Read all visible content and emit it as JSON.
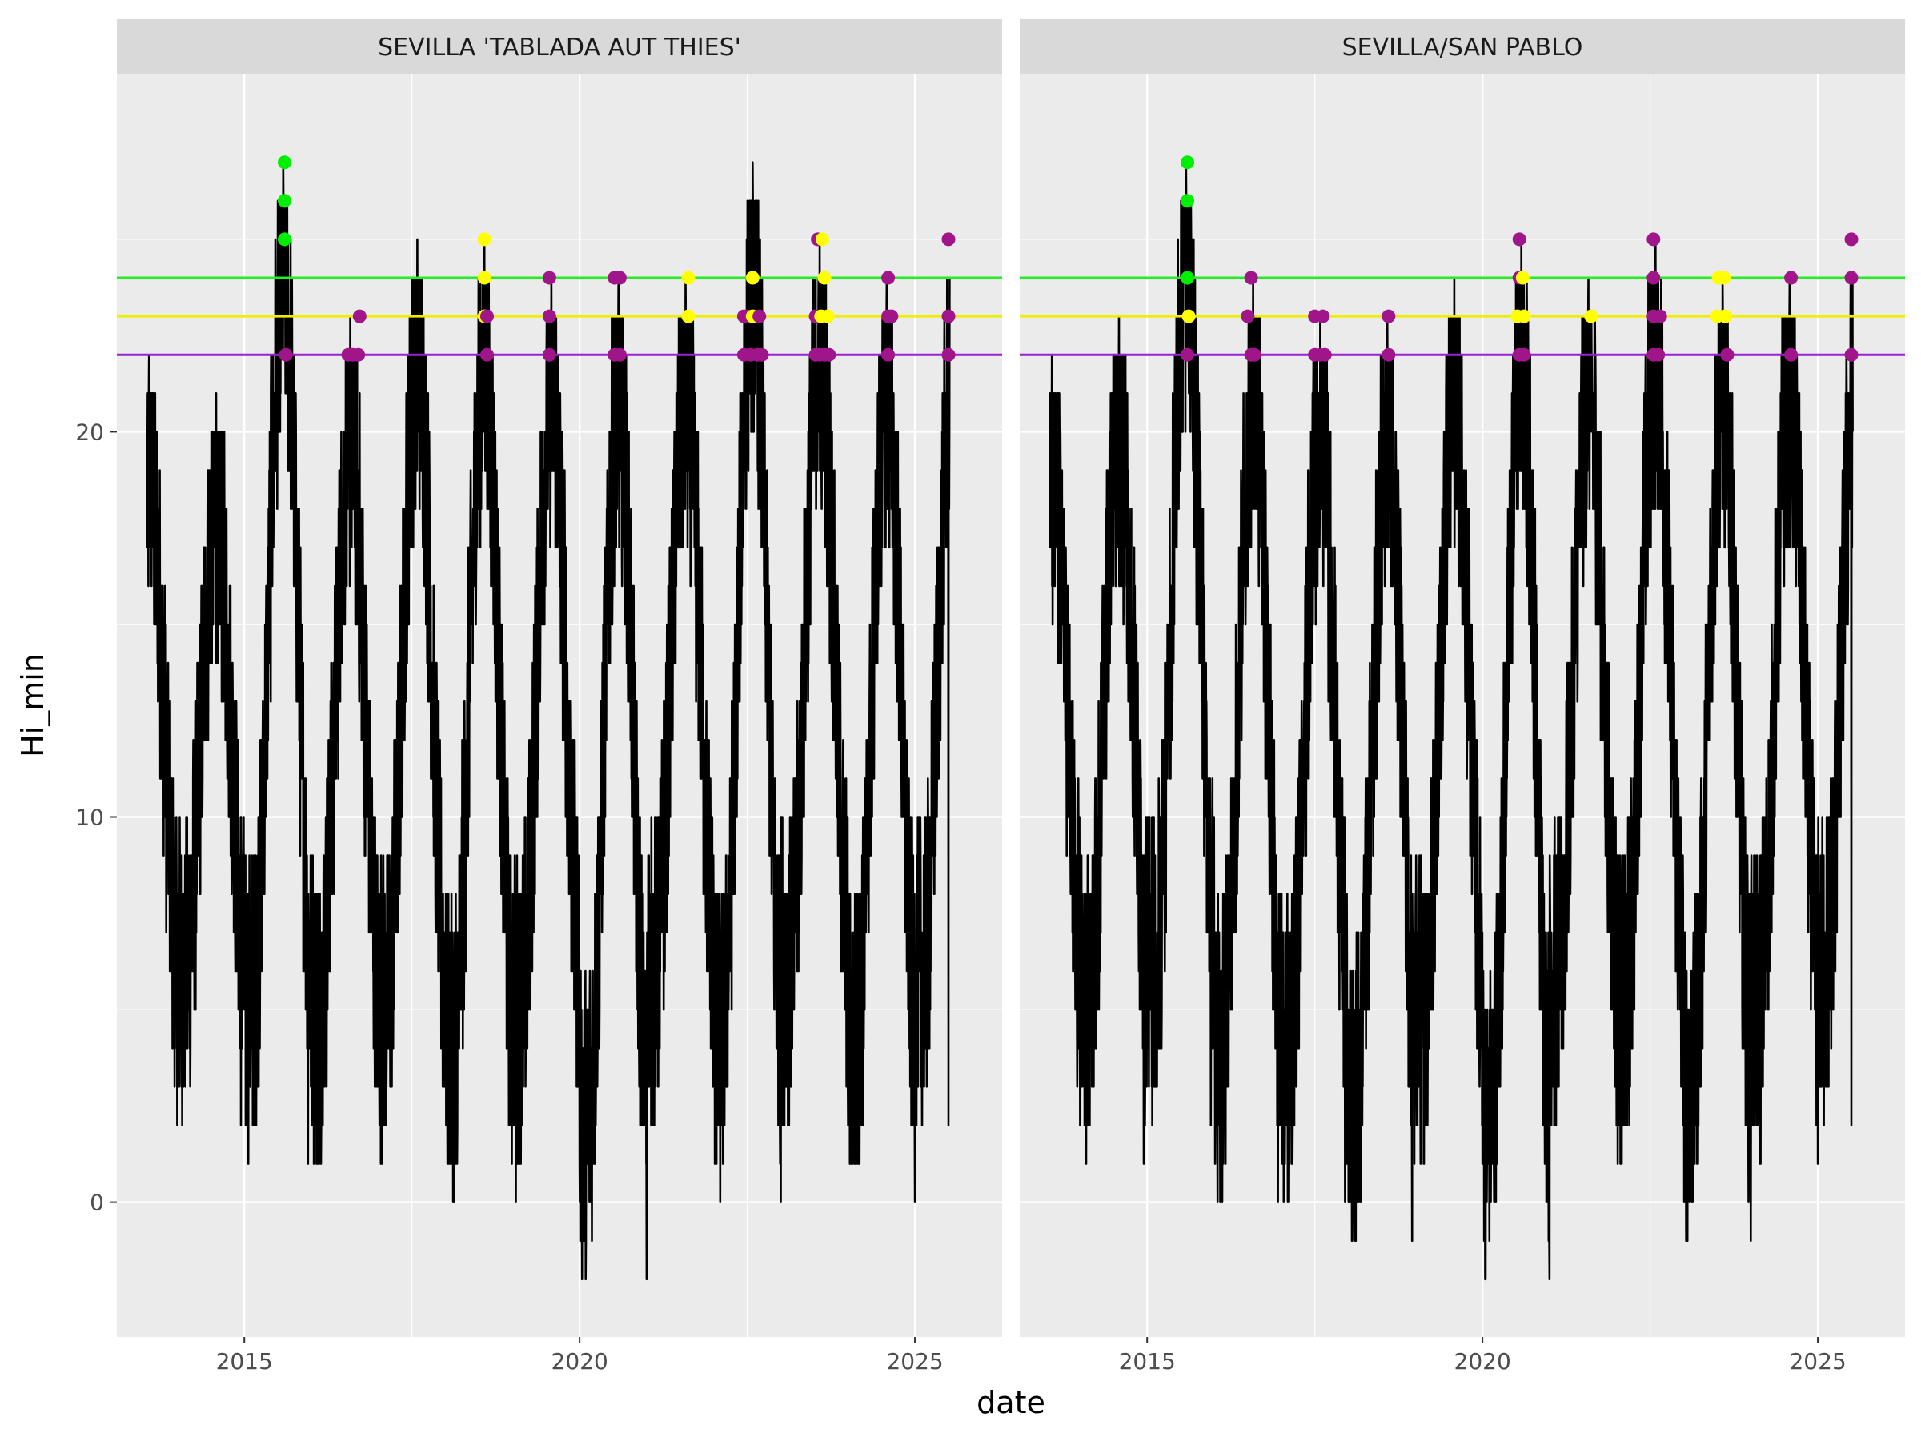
{
  "chart_data": {
    "type": "line",
    "xlabel": "date",
    "ylabel": "Hi_min",
    "xlim": [
      2013.1,
      2026.3
    ],
    "ylim": [
      -3.5,
      29.3
    ],
    "x_ticks": [
      2015,
      2020,
      2025
    ],
    "y_ticks": [
      0,
      10,
      20
    ],
    "grid": true,
    "legend": "none",
    "thresholds": [
      {
        "value": 24,
        "color": "#22ee22"
      },
      {
        "value": 23,
        "color": "#eeee00"
      },
      {
        "value": 22,
        "color": "#9a22d0"
      }
    ],
    "point_colors": {
      "green": "#00ee00",
      "yellow": "#ffff00",
      "purple": "#a0168a"
    },
    "panels": [
      {
        "title": "SEVILLA 'TABLADA AUT THIES'",
        "series": [
          {
            "year": 2013,
            "hi": 22,
            "lo": 2,
            "start_x": 2013.55,
            "end_min": 2014.0
          },
          {
            "year": 2014,
            "hi": 21,
            "lo": 2,
            "start_x": 2014.0,
            "end_min": 2014.95
          },
          {
            "year": 2015,
            "hi": 27,
            "lo": 1,
            "start_x": 2014.95,
            "end_min": 2015.95
          },
          {
            "year": 2016,
            "hi": 23,
            "lo": 1,
            "start_x": 2015.95,
            "end_min": 2017.05
          },
          {
            "year": 2017,
            "hi": 25,
            "lo": 1,
            "start_x": 2017.05,
            "end_min": 2018.15
          },
          {
            "year": 2018,
            "hi": 25,
            "lo": 0,
            "start_x": 2018.15,
            "end_min": 2019.05
          },
          {
            "year": 2019,
            "hi": 24,
            "lo": 1,
            "start_x": 2019.05,
            "end_min": 2020.0
          },
          {
            "year": 2020,
            "hi": 24,
            "lo": -2,
            "start_x": 2020.0,
            "end_min": 2021.0
          },
          {
            "year": 2021,
            "hi": 24,
            "lo": 2,
            "start_x": 2021.0,
            "end_min": 2022.05
          },
          {
            "year": 2022,
            "hi": 27,
            "lo": 0,
            "start_x": 2022.05,
            "end_min": 2023.0
          },
          {
            "year": 2023,
            "hi": 25,
            "lo": 2,
            "start_x": 2023.0,
            "end_min": 2024.05
          },
          {
            "year": 2024,
            "hi": 24,
            "lo": 0,
            "start_x": 2024.05,
            "end_min": 2025.0
          },
          {
            "year": 2025,
            "hi": 25,
            "lo": 2,
            "start_x": 2025.0,
            "end_min": 2025.5
          }
        ],
        "points": [
          {
            "x": 2015.6,
            "y": 27,
            "c": "green"
          },
          {
            "x": 2015.6,
            "y": 26,
            "c": "green"
          },
          {
            "x": 2015.6,
            "y": 25,
            "c": "green"
          },
          {
            "x": 2015.62,
            "y": 22,
            "c": "purple"
          },
          {
            "x": 2016.55,
            "y": 22,
            "c": "purple"
          },
          {
            "x": 2016.62,
            "y": 22,
            "c": "purple"
          },
          {
            "x": 2016.7,
            "y": 22,
            "c": "purple"
          },
          {
            "x": 2016.72,
            "y": 23,
            "c": "purple"
          },
          {
            "x": 2018.58,
            "y": 25,
            "c": "yellow"
          },
          {
            "x": 2018.58,
            "y": 24,
            "c": "yellow"
          },
          {
            "x": 2018.58,
            "y": 23,
            "c": "yellow"
          },
          {
            "x": 2018.62,
            "y": 23,
            "c": "purple"
          },
          {
            "x": 2018.62,
            "y": 22,
            "c": "purple"
          },
          {
            "x": 2019.55,
            "y": 24,
            "c": "purple"
          },
          {
            "x": 2019.55,
            "y": 23,
            "c": "purple"
          },
          {
            "x": 2019.55,
            "y": 22,
            "c": "purple"
          },
          {
            "x": 2020.52,
            "y": 24,
            "c": "purple"
          },
          {
            "x": 2020.6,
            "y": 24,
            "c": "purple"
          },
          {
            "x": 2020.52,
            "y": 22,
            "c": "purple"
          },
          {
            "x": 2020.6,
            "y": 22,
            "c": "purple"
          },
          {
            "x": 2021.62,
            "y": 24,
            "c": "yellow"
          },
          {
            "x": 2021.62,
            "y": 23,
            "c": "yellow"
          },
          {
            "x": 2022.45,
            "y": 23,
            "c": "purple"
          },
          {
            "x": 2022.5,
            "y": 23,
            "c": "purple"
          },
          {
            "x": 2022.58,
            "y": 24,
            "c": "yellow"
          },
          {
            "x": 2022.58,
            "y": 23,
            "c": "yellow"
          },
          {
            "x": 2022.68,
            "y": 23,
            "c": "purple"
          },
          {
            "x": 2022.45,
            "y": 22,
            "c": "purple"
          },
          {
            "x": 2022.55,
            "y": 22,
            "c": "purple"
          },
          {
            "x": 2022.65,
            "y": 22,
            "c": "purple"
          },
          {
            "x": 2022.72,
            "y": 22,
            "c": "purple"
          },
          {
            "x": 2023.52,
            "y": 23,
            "c": "purple"
          },
          {
            "x": 2023.55,
            "y": 25,
            "c": "purple"
          },
          {
            "x": 2023.62,
            "y": 25,
            "c": "yellow"
          },
          {
            "x": 2023.65,
            "y": 24,
            "c": "yellow"
          },
          {
            "x": 2023.6,
            "y": 23,
            "c": "yellow"
          },
          {
            "x": 2023.7,
            "y": 23,
            "c": "yellow"
          },
          {
            "x": 2023.52,
            "y": 22,
            "c": "purple"
          },
          {
            "x": 2023.58,
            "y": 22,
            "c": "purple"
          },
          {
            "x": 2023.65,
            "y": 22,
            "c": "purple"
          },
          {
            "x": 2023.72,
            "y": 22,
            "c": "purple"
          },
          {
            "x": 2024.6,
            "y": 24,
            "c": "purple"
          },
          {
            "x": 2024.6,
            "y": 23,
            "c": "purple"
          },
          {
            "x": 2024.65,
            "y": 23,
            "c": "purple"
          },
          {
            "x": 2024.6,
            "y": 22,
            "c": "purple"
          },
          {
            "x": 2025.5,
            "y": 25,
            "c": "purple"
          },
          {
            "x": 2025.5,
            "y": 23,
            "c": "purple"
          },
          {
            "x": 2025.5,
            "y": 22,
            "c": "purple"
          }
        ]
      },
      {
        "title": "SEVILLA/SAN PABLO",
        "series": [
          {
            "year": 2013,
            "hi": 22,
            "lo": 2,
            "start_x": 2013.55,
            "end_min": 2014.0
          },
          {
            "year": 2014,
            "hi": 23,
            "lo": 1,
            "start_x": 2014.0,
            "end_min": 2014.95
          },
          {
            "year": 2015,
            "hi": 27,
            "lo": 2,
            "start_x": 2014.95,
            "end_min": 2015.95
          },
          {
            "year": 2016,
            "hi": 24,
            "lo": 0,
            "start_x": 2015.95,
            "end_min": 2016.95
          },
          {
            "year": 2017,
            "hi": 23,
            "lo": 0,
            "start_x": 2016.95,
            "end_min": 2017.95
          },
          {
            "year": 2018,
            "hi": 23,
            "lo": -1,
            "start_x": 2017.95,
            "end_min": 2018.95
          },
          {
            "year": 2019,
            "hi": 24,
            "lo": 1,
            "start_x": 2018.95,
            "end_min": 2020.0
          },
          {
            "year": 2020,
            "hi": 25,
            "lo": -2,
            "start_x": 2020.0,
            "end_min": 2021.0
          },
          {
            "year": 2021,
            "hi": 24,
            "lo": 2,
            "start_x": 2021.0,
            "end_min": 2022.0
          },
          {
            "year": 2022,
            "hi": 25,
            "lo": 1,
            "start_x": 2022.0,
            "end_min": 2023.05
          },
          {
            "year": 2023,
            "hi": 24,
            "lo": -1,
            "start_x": 2023.05,
            "end_min": 2024.0
          },
          {
            "year": 2024,
            "hi": 24,
            "lo": 1,
            "start_x": 2024.0,
            "end_min": 2025.0
          },
          {
            "year": 2025,
            "hi": 25,
            "lo": 2,
            "start_x": 2025.0,
            "end_min": 2025.5
          }
        ],
        "points": [
          {
            "x": 2015.6,
            "y": 27,
            "c": "green"
          },
          {
            "x": 2015.6,
            "y": 26,
            "c": "green"
          },
          {
            "x": 2015.6,
            "y": 24,
            "c": "green"
          },
          {
            "x": 2015.62,
            "y": 23,
            "c": "yellow"
          },
          {
            "x": 2015.6,
            "y": 22,
            "c": "purple"
          },
          {
            "x": 2016.55,
            "y": 24,
            "c": "purple"
          },
          {
            "x": 2016.5,
            "y": 23,
            "c": "purple"
          },
          {
            "x": 2016.55,
            "y": 22,
            "c": "purple"
          },
          {
            "x": 2016.6,
            "y": 22,
            "c": "purple"
          },
          {
            "x": 2017.5,
            "y": 23,
            "c": "purple"
          },
          {
            "x": 2017.62,
            "y": 23,
            "c": "purple"
          },
          {
            "x": 2017.5,
            "y": 22,
            "c": "purple"
          },
          {
            "x": 2017.58,
            "y": 22,
            "c": "purple"
          },
          {
            "x": 2017.65,
            "y": 22,
            "c": "purple"
          },
          {
            "x": 2018.6,
            "y": 23,
            "c": "purple"
          },
          {
            "x": 2018.6,
            "y": 22,
            "c": "purple"
          },
          {
            "x": 2020.55,
            "y": 25,
            "c": "purple"
          },
          {
            "x": 2020.55,
            "y": 24,
            "c": "purple"
          },
          {
            "x": 2020.6,
            "y": 24,
            "c": "yellow"
          },
          {
            "x": 2020.52,
            "y": 23,
            "c": "yellow"
          },
          {
            "x": 2020.62,
            "y": 23,
            "c": "yellow"
          },
          {
            "x": 2020.55,
            "y": 22,
            "c": "purple"
          },
          {
            "x": 2020.62,
            "y": 22,
            "c": "purple"
          },
          {
            "x": 2021.62,
            "y": 23,
            "c": "yellow"
          },
          {
            "x": 2022.55,
            "y": 25,
            "c": "purple"
          },
          {
            "x": 2022.55,
            "y": 24,
            "c": "purple"
          },
          {
            "x": 2022.55,
            "y": 23,
            "c": "purple"
          },
          {
            "x": 2022.65,
            "y": 23,
            "c": "purple"
          },
          {
            "x": 2022.55,
            "y": 22,
            "c": "purple"
          },
          {
            "x": 2022.62,
            "y": 22,
            "c": "purple"
          },
          {
            "x": 2023.52,
            "y": 24,
            "c": "yellow"
          },
          {
            "x": 2023.6,
            "y": 24,
            "c": "yellow"
          },
          {
            "x": 2023.5,
            "y": 23,
            "c": "yellow"
          },
          {
            "x": 2023.62,
            "y": 23,
            "c": "yellow"
          },
          {
            "x": 2023.65,
            "y": 22,
            "c": "purple"
          },
          {
            "x": 2024.6,
            "y": 24,
            "c": "purple"
          },
          {
            "x": 2024.6,
            "y": 22,
            "c": "purple"
          },
          {
            "x": 2025.5,
            "y": 25,
            "c": "purple"
          },
          {
            "x": 2025.5,
            "y": 24,
            "c": "purple"
          },
          {
            "x": 2025.5,
            "y": 22,
            "c": "purple"
          }
        ]
      }
    ]
  }
}
